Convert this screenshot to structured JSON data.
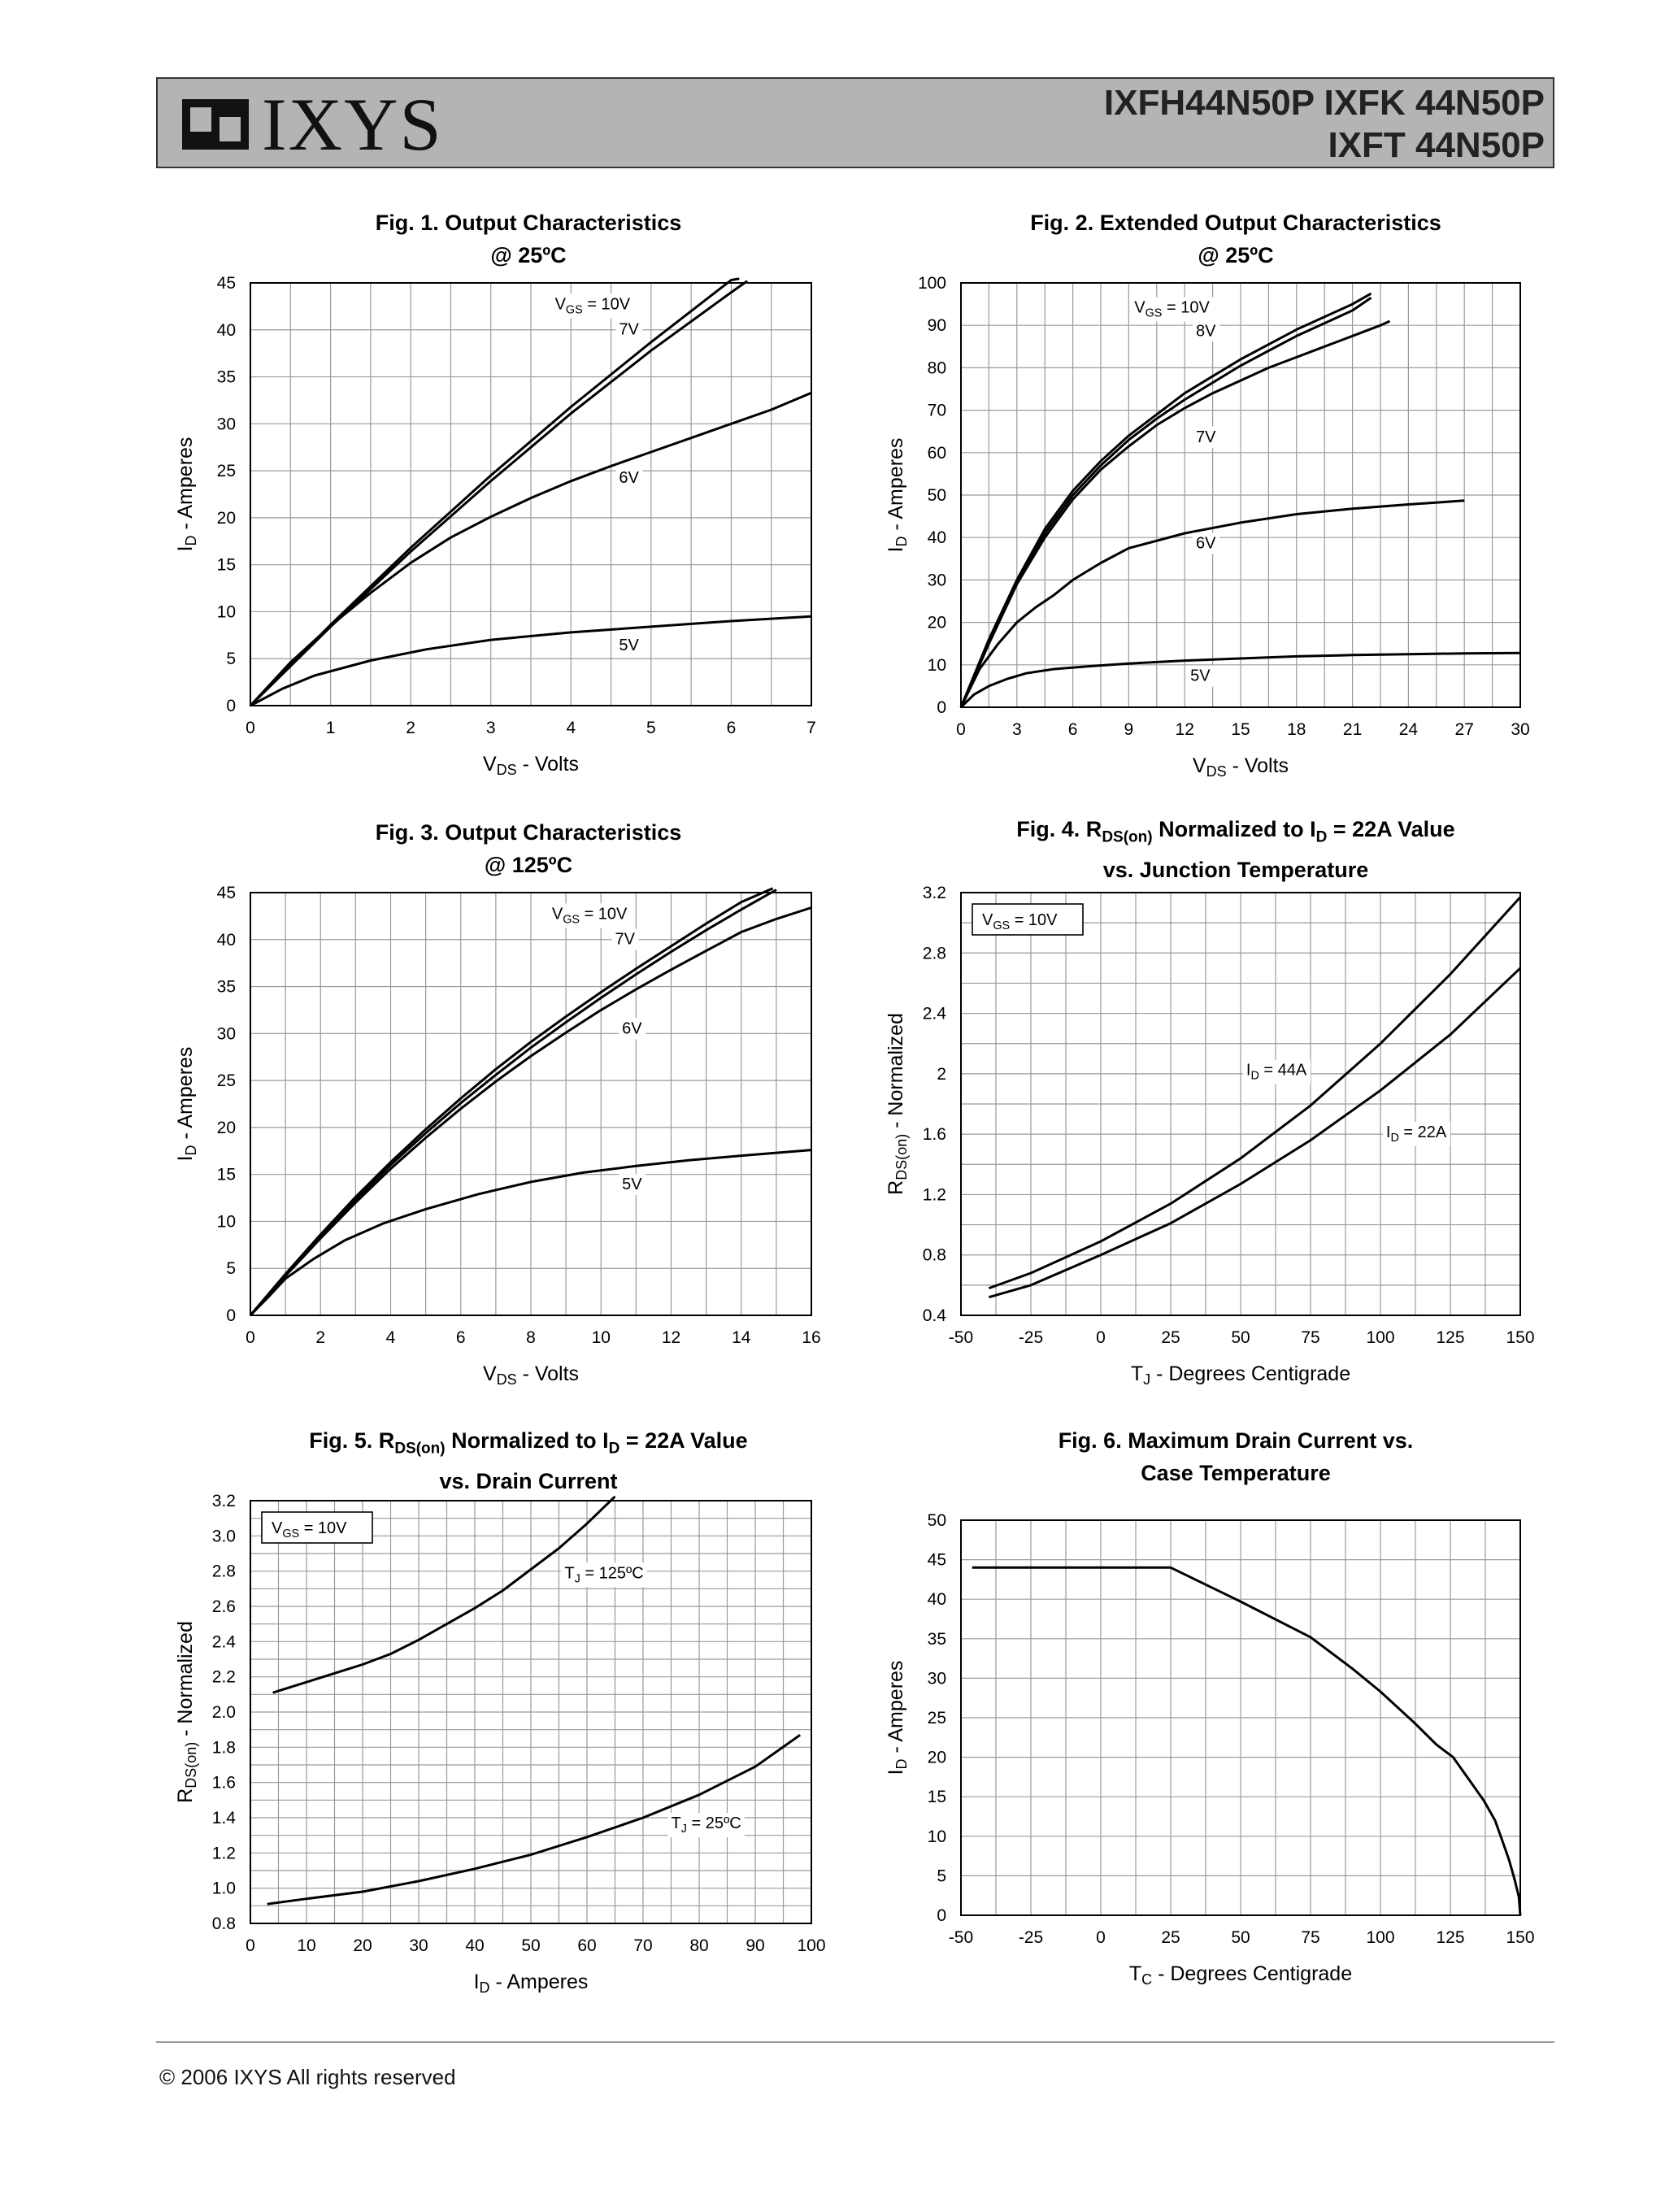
{
  "header": {
    "logo_text": "IXYS",
    "part_line1": "IXFH44N50P IXFK 44N50P",
    "part_line2": "IXFT 44N50P"
  },
  "footer": {
    "copyright": "© 2006 IXYS All rights reserved"
  },
  "chart_data": [
    {
      "id": "fig1",
      "type": "line",
      "title_line1": "Fig. 1. Output Characteristics",
      "title_line2": "@ 25ºC",
      "xlabel": "VDS - Volts",
      "ylabel": "ID - Amperes",
      "xlim": [
        0,
        7
      ],
      "ylim": [
        0,
        45
      ],
      "xticks": [
        0,
        1,
        2,
        3,
        4,
        5,
        6,
        7
      ],
      "yticks": [
        0,
        5,
        10,
        15,
        20,
        25,
        30,
        35,
        40,
        45
      ],
      "xgrid": [
        0,
        0.5,
        1,
        1.5,
        2,
        2.5,
        3,
        3.5,
        4,
        4.5,
        5,
        5.5,
        6,
        6.5,
        7
      ],
      "ygrid": [
        0,
        5,
        10,
        15,
        20,
        25,
        30,
        35,
        40,
        45
      ],
      "series": [
        {
          "name": "VGS = 10V",
          "x": [
            0,
            1,
            2,
            3,
            4,
            5,
            6,
            6.1
          ],
          "y": [
            0,
            8.6,
            16.8,
            24.5,
            31.8,
            38.7,
            45.3,
            46
          ]
        },
        {
          "name": "7V",
          "x": [
            0,
            1,
            2,
            3,
            4,
            5,
            6,
            6.2
          ],
          "y": [
            0,
            8.4,
            16.4,
            23.9,
            31.1,
            37.8,
            44,
            45.2
          ]
        },
        {
          "name": "6V",
          "x": [
            0,
            0.5,
            1,
            1.5,
            2,
            2.5,
            3,
            3.5,
            4,
            4.5,
            5,
            5.5,
            6,
            6.5,
            7
          ],
          "y": [
            0,
            4.6,
            8.5,
            12,
            15.2,
            17.9,
            20.1,
            22.1,
            23.9,
            25.5,
            27,
            28.5,
            30,
            31.5,
            33.3
          ]
        },
        {
          "name": "5V",
          "x": [
            0,
            0.4,
            0.8,
            1.5,
            2.2,
            3,
            4,
            5,
            6,
            7
          ],
          "y": [
            0,
            1.8,
            3.2,
            4.8,
            6,
            7,
            7.8,
            8.4,
            9,
            9.5
          ]
        }
      ],
      "labels": [
        {
          "text": "V",
          "sub": "GS",
          "rest": " = 10V",
          "x": 3.8,
          "y": 42.2
        },
        {
          "text": "7V",
          "x": 4.6,
          "y": 39.5
        },
        {
          "text": "6V",
          "x": 4.6,
          "y": 23.7
        },
        {
          "text": "5V",
          "x": 4.6,
          "y": 5.9
        }
      ]
    },
    {
      "id": "fig2",
      "type": "line",
      "title_line1": "Fig. 2. Extended Output Characteristics",
      "title_line2": "@ 25ºC",
      "xlabel": "VDS - Volts",
      "ylabel": "ID - Amperes",
      "xlim": [
        0,
        30
      ],
      "ylim": [
        0,
        100
      ],
      "xticks": [
        0,
        3,
        6,
        9,
        12,
        15,
        18,
        21,
        24,
        27,
        30
      ],
      "yticks": [
        0,
        10,
        20,
        30,
        40,
        50,
        60,
        70,
        80,
        90,
        100
      ],
      "xgrid": [
        0,
        1.5,
        3,
        4.5,
        6,
        7.5,
        9,
        10.5,
        12,
        13.5,
        15,
        16.5,
        18,
        19.5,
        21,
        22.5,
        24,
        25.5,
        27,
        28.5,
        30
      ],
      "ygrid": [
        0,
        10,
        20,
        30,
        40,
        50,
        60,
        70,
        80,
        90,
        100
      ],
      "series": [
        {
          "name": "VGS = 10V",
          "x": [
            0,
            1.5,
            3,
            4.5,
            6,
            7.5,
            9,
            10.5,
            12,
            13.5,
            15,
            16.5,
            18,
            19.5,
            21,
            22
          ],
          "y": [
            0,
            16,
            30,
            42,
            51,
            58,
            64,
            69,
            74,
            78,
            82,
            85.5,
            89,
            92,
            95,
            97.5
          ]
        },
        {
          "name": "8V",
          "x": [
            0,
            1.5,
            3,
            4.5,
            6,
            7.5,
            9,
            10.5,
            12,
            13.5,
            15,
            16.5,
            18,
            19.5,
            21,
            22
          ],
          "y": [
            0,
            15.5,
            29.5,
            41,
            50,
            57,
            63,
            68,
            72.5,
            76.5,
            80.5,
            84,
            87.5,
            90.5,
            93.5,
            96.5
          ]
        },
        {
          "name": "7V",
          "x": [
            0,
            1.5,
            3,
            4.5,
            6,
            7.5,
            9,
            10.5,
            12,
            13.5,
            15,
            16.5,
            18,
            19.5,
            21,
            22.5,
            23
          ],
          "y": [
            0,
            15,
            29,
            40,
            49,
            56,
            61.5,
            66.5,
            70.5,
            74,
            77,
            80,
            82.5,
            85,
            87.5,
            90,
            91
          ]
        },
        {
          "name": "6V",
          "x": [
            0,
            1,
            2,
            3,
            4,
            5,
            6,
            7.5,
            9,
            12,
            15,
            18,
            21,
            24,
            27
          ],
          "y": [
            0,
            9,
            15,
            20,
            23.5,
            26.5,
            30,
            34,
            37.5,
            41,
            43.5,
            45.5,
            46.8,
            47.8,
            48.7
          ]
        },
        {
          "name": "5V",
          "x": [
            0,
            0.7,
            1.5,
            2.5,
            3.5,
            5,
            7,
            9,
            12,
            15,
            18,
            21,
            24,
            27,
            30
          ],
          "y": [
            0,
            3,
            5,
            6.7,
            8,
            9,
            9.7,
            10.3,
            11,
            11.5,
            12,
            12.3,
            12.5,
            12.7,
            12.8
          ]
        }
      ],
      "labels": [
        {
          "text": "V",
          "sub": "GS",
          "rest": " = 10V",
          "x": 9.3,
          "y": 93
        },
        {
          "text": "8V",
          "x": 12.6,
          "y": 87.5
        },
        {
          "text": "7V",
          "x": 12.6,
          "y": 62.5
        },
        {
          "text": "6V",
          "x": 12.6,
          "y": 37.5
        },
        {
          "text": "5V",
          "x": 12.3,
          "y": 6.2
        }
      ]
    },
    {
      "id": "fig3",
      "type": "line",
      "title_line1": "Fig. 3. Output Characteristics",
      "title_line2": "@ 125ºC",
      "xlabel": "VDS - Volts",
      "ylabel": "ID - Amperes",
      "xlim": [
        0,
        16
      ],
      "ylim": [
        0,
        45
      ],
      "xticks": [
        0,
        2,
        4,
        6,
        8,
        10,
        12,
        14,
        16
      ],
      "yticks": [
        0,
        5,
        10,
        15,
        20,
        25,
        30,
        35,
        40,
        45
      ],
      "xgrid": [
        0,
        1,
        2,
        3,
        4,
        5,
        6,
        7,
        8,
        9,
        10,
        11,
        12,
        13,
        14,
        15,
        16
      ],
      "ygrid": [
        0,
        5,
        10,
        15,
        20,
        25,
        30,
        35,
        40,
        45
      ],
      "series": [
        {
          "name": "VGS = 10V",
          "x": [
            0,
            1,
            2,
            3,
            4,
            5,
            6,
            7,
            8,
            9,
            10,
            11,
            12,
            13,
            14,
            14.9
          ],
          "y": [
            0,
            4.4,
            8.6,
            12.6,
            16.3,
            19.8,
            23.1,
            26.2,
            29.1,
            31.8,
            34.4,
            36.9,
            39.3,
            41.7,
            44,
            46
          ]
        },
        {
          "name": "7V",
          "x": [
            0,
            1,
            2,
            3,
            4,
            5,
            6,
            7,
            8,
            9,
            10,
            11,
            12,
            13,
            14,
            15
          ],
          "y": [
            0,
            4.3,
            8.4,
            12.3,
            16,
            19.4,
            22.6,
            25.6,
            28.5,
            31.2,
            33.8,
            36.3,
            38.7,
            41,
            43.2,
            45.3
          ]
        },
        {
          "name": "6V",
          "x": [
            0,
            1,
            2,
            3,
            4,
            5,
            6,
            7,
            8,
            9,
            10,
            11,
            12,
            13,
            14,
            15,
            16
          ],
          "y": [
            0,
            4.2,
            8.2,
            12,
            15.6,
            18.9,
            22,
            24.9,
            27.6,
            30.1,
            32.5,
            34.7,
            36.8,
            38.8,
            40.8,
            42.2,
            43.4
          ]
        },
        {
          "name": "5V",
          "x": [
            0,
            0.5,
            1,
            1.8,
            2.7,
            3.8,
            5,
            6.5,
            8,
            9.5,
            11,
            12.5,
            14,
            16
          ],
          "y": [
            0,
            1.9,
            3.9,
            6,
            8,
            9.8,
            11.3,
            12.9,
            14.2,
            15.2,
            15.9,
            16.5,
            17,
            17.6
          ]
        }
      ],
      "labels": [
        {
          "text": "V",
          "sub": "GS",
          "rest": " = 10V",
          "x": 8.6,
          "y": 42.2
        },
        {
          "text": "7V",
          "x": 10.4,
          "y": 39.5
        },
        {
          "text": "6V",
          "x": 10.6,
          "y": 30
        },
        {
          "text": "5V",
          "x": 10.6,
          "y": 13.4
        }
      ]
    },
    {
      "id": "fig4",
      "type": "line",
      "title_line1": "Fig. 4. R",
      "title_sub": "DS(on)",
      "title_mid": " Normalized to I",
      "title_sub2": "D",
      "title_end": " = 22A Value",
      "title_line2": "vs. Junction Temperature",
      "xlabel": "TJ - Degrees Centigrade",
      "ylabel": "RDS(on) - Normalized",
      "xlim": [
        -50,
        150
      ],
      "ylim": [
        0.4,
        3.2
      ],
      "xticks": [
        -50,
        -25,
        0,
        25,
        50,
        75,
        100,
        125,
        150
      ],
      "yticks": [
        0.4,
        0.8,
        1.2,
        1.6,
        2,
        2.4,
        2.8,
        3.2
      ],
      "xgrid": [
        -50,
        -37.5,
        -25,
        -12.5,
        0,
        12.5,
        25,
        37.5,
        50,
        62.5,
        75,
        87.5,
        100,
        112.5,
        125,
        137.5,
        150
      ],
      "ygrid": [
        0.4,
        0.6,
        0.8,
        1,
        1.2,
        1.4,
        1.6,
        1.8,
        2,
        2.2,
        2.4,
        2.6,
        2.8,
        3,
        3.2
      ],
      "series": [
        {
          "name": "ID = 44A",
          "x": [
            -40,
            -25,
            0,
            25,
            50,
            75,
            100,
            125,
            150
          ],
          "y": [
            0.58,
            0.68,
            0.89,
            1.14,
            1.44,
            1.79,
            2.2,
            2.66,
            3.17
          ]
        },
        {
          "name": "ID = 22A",
          "x": [
            -40,
            -25,
            0,
            25,
            50,
            75,
            100,
            125,
            150
          ],
          "y": [
            0.52,
            0.6,
            0.8,
            1.01,
            1.27,
            1.56,
            1.89,
            2.26,
            2.7
          ]
        }
      ],
      "legend_box": "VGS = 10V",
      "labels": [
        {
          "text": "I",
          "sub": "D",
          "rest": " = 44A",
          "x": 52,
          "y": 1.99
        },
        {
          "text": "I",
          "sub": "D",
          "rest": " = 22A",
          "x": 102,
          "y": 1.58
        }
      ]
    },
    {
      "id": "fig5",
      "type": "line",
      "title_line1": "Fig. 5. R",
      "title_sub": "DS(on)",
      "title_mid": " Normalized to I",
      "title_sub2": "D",
      "title_end": " = 22A Value",
      "title_line2": "vs. Drain Current",
      "xlabel": "ID - Amperes",
      "ylabel": "RDS(on) - Normalized",
      "xlim": [
        0,
        100
      ],
      "ylim": [
        0.8,
        3.2
      ],
      "xticks": [
        0,
        10,
        20,
        30,
        40,
        50,
        60,
        70,
        80,
        90,
        100
      ],
      "yticks": [
        0.8,
        1.0,
        1.2,
        1.4,
        1.6,
        1.8,
        2.0,
        2.2,
        2.4,
        2.6,
        2.8,
        3.0,
        3.2
      ],
      "ytick_labels": [
        "0.8",
        "1.0",
        "1.2",
        "1.4",
        "1.6",
        "1.8",
        "2.0",
        "2.2",
        "2.4",
        "2.6",
        "2.8",
        "3.0",
        "3.2"
      ],
      "xgrid": [
        0,
        5,
        10,
        15,
        20,
        25,
        30,
        35,
        40,
        45,
        50,
        55,
        60,
        65,
        70,
        75,
        80,
        85,
        90,
        95,
        100
      ],
      "ygrid": [
        0.8,
        0.9,
        1.0,
        1.1,
        1.2,
        1.3,
        1.4,
        1.5,
        1.6,
        1.7,
        1.8,
        1.9,
        2.0,
        2.1,
        2.2,
        2.3,
        2.4,
        2.5,
        2.6,
        2.7,
        2.8,
        2.9,
        3.0,
        3.1,
        3.2
      ],
      "series": [
        {
          "name": "TJ = 125ºC",
          "x": [
            4,
            10,
            15,
            20,
            25,
            30,
            35,
            40,
            45,
            50,
            55,
            60,
            65
          ],
          "y": [
            2.11,
            2.17,
            2.22,
            2.27,
            2.33,
            2.41,
            2.5,
            2.59,
            2.69,
            2.81,
            2.93,
            3.07,
            3.23
          ]
        },
        {
          "name": "TJ = 25ºC",
          "x": [
            3,
            10,
            20,
            30,
            40,
            50,
            60,
            70,
            80,
            90,
            98
          ],
          "y": [
            0.91,
            0.94,
            0.98,
            1.04,
            1.11,
            1.19,
            1.29,
            1.4,
            1.53,
            1.69,
            1.87
          ]
        }
      ],
      "legend_box": "VGS = 10V",
      "labels": [
        {
          "text": "T",
          "sub": "J",
          "rest": " = 125ºC",
          "x": 56,
          "y": 2.76
        },
        {
          "text": "T",
          "sub": "J",
          "rest": " = 25ºC",
          "x": 75,
          "y": 1.34
        }
      ]
    },
    {
      "id": "fig6",
      "type": "line",
      "title_line1": "Fig. 6. Maximum Drain Current vs.",
      "title_line2": "Case Temperature",
      "xlabel": "TC - Degrees Centigrade",
      "ylabel": "ID - Amperes",
      "xlim": [
        -50,
        150
      ],
      "ylim": [
        0,
        50
      ],
      "xticks": [
        -50,
        -25,
        0,
        25,
        50,
        75,
        100,
        125,
        150
      ],
      "yticks": [
        0,
        5,
        10,
        15,
        20,
        25,
        30,
        35,
        40,
        45,
        50
      ],
      "xgrid": [
        -50,
        -37.5,
        -25,
        -12.5,
        0,
        12.5,
        25,
        37.5,
        50,
        62.5,
        75,
        87.5,
        100,
        112.5,
        125,
        137.5,
        150
      ],
      "ygrid": [
        0,
        5,
        10,
        15,
        20,
        25,
        30,
        35,
        40,
        45,
        50
      ],
      "series": [
        {
          "name": "ID max",
          "x": [
            -46,
            25,
            50,
            75,
            90,
            100,
            112,
            120,
            126,
            132,
            137,
            141,
            144,
            146,
            148,
            149.5,
            150
          ],
          "y": [
            44,
            44,
            39.7,
            35.2,
            31.2,
            28.3,
            24.4,
            21.6,
            20,
            17,
            14.5,
            12,
            9,
            7,
            4.5,
            2.3,
            0
          ]
        }
      ],
      "labels": []
    }
  ]
}
